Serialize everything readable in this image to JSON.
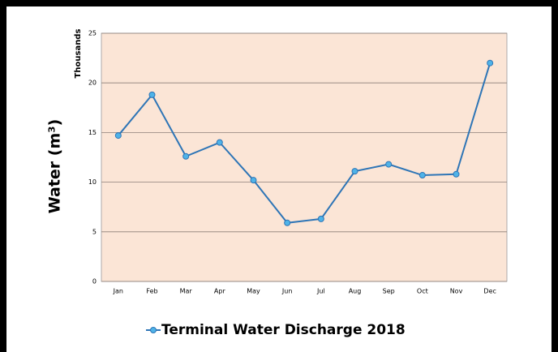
{
  "chart_data": {
    "type": "line",
    "ylabel": "Water (m³)",
    "yunit": "Thousands",
    "categories": [
      "Jan",
      "Feb",
      "Mar",
      "Apr",
      "May",
      "Jun",
      "Jul",
      "Aug",
      "Sep",
      "Oct",
      "Nov",
      "Dec"
    ],
    "series": [
      {
        "name": "Terminal Water Discharge 2018",
        "color": "#2e75b6",
        "marker_color": "#4fb3e8",
        "values": [
          14.7,
          18.8,
          12.6,
          14.0,
          10.2,
          5.9,
          6.3,
          11.1,
          11.8,
          10.7,
          10.8,
          22.0
        ]
      }
    ],
    "ylim": [
      0,
      25
    ],
    "yticks": [
      0,
      5,
      10,
      15,
      20,
      25
    ],
    "grid": true,
    "plot_background": "#fbe5d6",
    "legend": "bottom"
  }
}
